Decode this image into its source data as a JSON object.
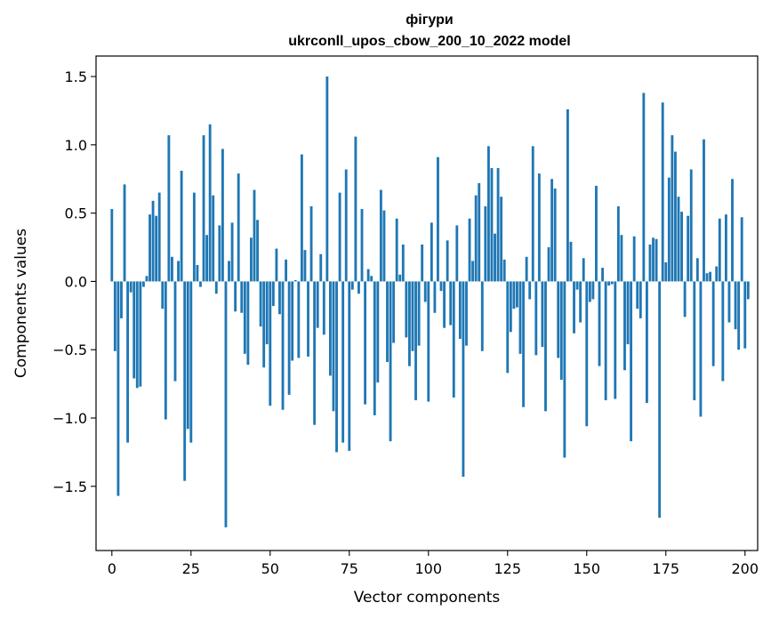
{
  "chart_data": {
    "type": "bar",
    "title_line1": "фігури",
    "title_line2": "ukrconll_upos_cbow_200_10_2022 model",
    "xlabel": "Vector components",
    "ylabel": "Components values",
    "xlim": [
      -5,
      204
    ],
    "ylim": [
      -1.97,
      1.65
    ],
    "x_ticks": [
      0,
      25,
      50,
      75,
      100,
      125,
      150,
      175,
      200
    ],
    "y_ticks": [
      -1.5,
      -1.0,
      -0.5,
      0.0,
      0.5,
      1.0,
      1.5
    ],
    "y_tick_labels": [
      "−1.5",
      "−1.0",
      "−0.5",
      "0.0",
      "0.5",
      "1.0",
      "1.5"
    ],
    "bar_color": "#1f77b4",
    "grid": false,
    "values": [
      0.53,
      -0.51,
      -1.57,
      -0.27,
      0.71,
      -1.18,
      -0.08,
      -0.71,
      -0.78,
      -0.77,
      -0.04,
      0.04,
      0.49,
      0.59,
      0.48,
      0.65,
      -0.2,
      -1.01,
      1.07,
      0.18,
      -0.73,
      0.15,
      0.81,
      -1.46,
      -1.08,
      -1.18,
      0.65,
      0.12,
      -0.04,
      1.07,
      0.34,
      1.15,
      0.63,
      -0.09,
      0.41,
      0.97,
      -1.8,
      0.15,
      0.43,
      -0.22,
      0.79,
      -0.23,
      -0.53,
      -0.61,
      0.32,
      0.67,
      0.45,
      -0.33,
      -0.63,
      -0.46,
      -0.91,
      -0.18,
      0.24,
      -0.24,
      -0.94,
      0.16,
      -0.83,
      -0.58,
      0.01,
      -0.56,
      0.93,
      0.23,
      -0.55,
      0.55,
      -1.05,
      -0.34,
      0.2,
      -0.39,
      1.5,
      -0.69,
      -0.95,
      -1.25,
      0.65,
      -1.18,
      0.82,
      -1.24,
      -0.06,
      1.06,
      -0.09,
      0.53,
      -0.9,
      0.09,
      0.04,
      -0.98,
      -0.74,
      0.67,
      0.52,
      -0.59,
      -1.17,
      -0.45,
      0.46,
      0.05,
      0.27,
      -0.41,
      -0.62,
      -0.51,
      -0.87,
      -0.47,
      0.27,
      -0.15,
      -0.88,
      0.43,
      -0.23,
      0.91,
      -0.07,
      -0.34,
      0.3,
      -0.32,
      -0.85,
      0.41,
      -0.42,
      -1.43,
      -0.47,
      0.46,
      0.15,
      0.63,
      0.72,
      -0.51,
      0.55,
      0.99,
      0.83,
      0.35,
      0.83,
      0.62,
      0.16,
      -0.67,
      -0.37,
      -0.2,
      -0.19,
      -0.53,
      -0.92,
      0.18,
      -0.13,
      0.99,
      -0.54,
      0.79,
      -0.48,
      -0.95,
      0.25,
      0.75,
      0.68,
      -0.56,
      -0.72,
      -1.29,
      1.26,
      0.29,
      -0.38,
      -0.06,
      -0.3,
      0.17,
      -1.06,
      -0.15,
      -0.13,
      0.7,
      -0.62,
      0.1,
      -0.87,
      -0.03,
      -0.02,
      -0.86,
      0.55,
      0.34,
      -0.65,
      -0.46,
      -1.17,
      0.33,
      -0.2,
      -0.27,
      1.38,
      -0.89,
      0.27,
      0.32,
      0.31,
      -1.73,
      1.31,
      0.14,
      0.76,
      1.07,
      0.95,
      0.62,
      0.51,
      -0.26,
      0.48,
      0.82,
      -0.87,
      0.17,
      -0.99,
      1.04,
      0.06,
      0.07,
      -0.62,
      0.11,
      0.46,
      -0.73,
      0.49,
      -0.3,
      0.75,
      -0.35,
      -0.5,
      0.47,
      -0.49,
      -0.13
    ]
  }
}
